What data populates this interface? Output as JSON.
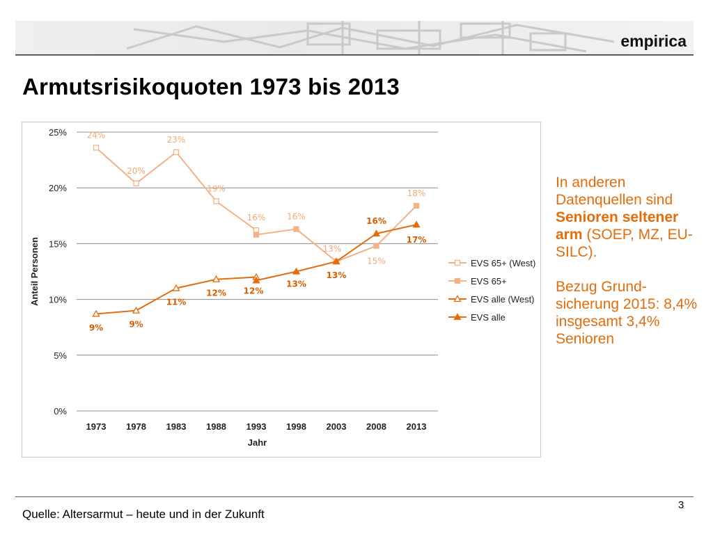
{
  "header": {
    "brand": "empirica"
  },
  "page": {
    "title": "Armutsrisikoquoten 1973 bis 2013",
    "number": "3",
    "source": "Quelle: Altersarmut – heute und in der Zukunft"
  },
  "side_note": {
    "p1_pre": "In anderen Datenquellen sind ",
    "p1_bold": "Senioren seltener arm",
    "p1_post": " (SOEP, MZ, EU-SILC).",
    "p2": "Bezug Grund-sicherung 2015: 8,4% insgesamt 3,4% Senioren"
  },
  "colors": {
    "accent": "#e46c0a",
    "light_series": "#f4b183",
    "label_light": "#f0a875",
    "label_dark": "#d65e00"
  },
  "chart_data": {
    "type": "line",
    "categories": [
      "1973",
      "1978",
      "1983",
      "1988",
      "1993",
      "1998",
      "2003",
      "2008",
      "2013"
    ],
    "xlabel": "Jahr",
    "ylabel": "Anteil Personen",
    "ylim": [
      0,
      25
    ],
    "yticks": [
      "0%",
      "5%",
      "10%",
      "15%",
      "20%",
      "25%"
    ],
    "grid": true,
    "legend": "right",
    "series": [
      {
        "name": "EVS 65+ (West)",
        "values": [
          23.6,
          20.4,
          23.2,
          18.8,
          16.2,
          null,
          null,
          null,
          null
        ],
        "labels": [
          "24%",
          "20%",
          "23%",
          "19%",
          "16%",
          "",
          "",
          "",
          ""
        ]
      },
      {
        "name": "EVS 65+",
        "values": [
          null,
          null,
          null,
          null,
          15.8,
          16.3,
          13.4,
          14.8,
          18.4
        ],
        "labels": [
          "",
          "",
          "",
          "",
          "",
          "16%",
          "13%",
          "15%",
          "18%"
        ]
      },
      {
        "name": "EVS alle (West)",
        "values": [
          8.7,
          9.0,
          11.0,
          11.8,
          12.0,
          null,
          null,
          null,
          null
        ],
        "labels": [
          "9%",
          "9%",
          "11%",
          "12%",
          "12%",
          "",
          "",
          "",
          ""
        ]
      },
      {
        "name": "EVS alle",
        "values": [
          null,
          null,
          null,
          null,
          11.7,
          12.5,
          13.4,
          15.9,
          16.7
        ],
        "labels": [
          "",
          "",
          "",
          "",
          "",
          "13%",
          "13%",
          "16%",
          "17%"
        ]
      }
    ]
  }
}
